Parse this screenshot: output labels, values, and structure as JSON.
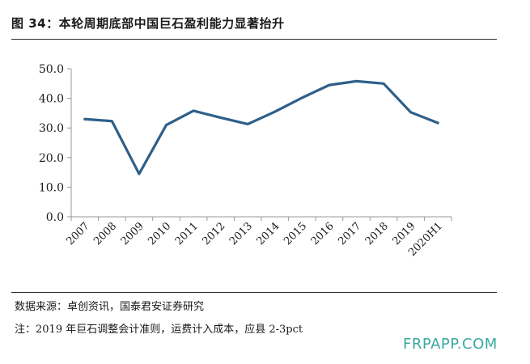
{
  "figure_title": "图 34：本轮周期底部中国巨石盈利能力显著抬升",
  "chart_data": {
    "type": "line",
    "categories": [
      "2007",
      "2008",
      "2009",
      "2010",
      "2011",
      "2012",
      "2013",
      "2014",
      "2015",
      "2016",
      "2017",
      "2018",
      "2019",
      "2020H1"
    ],
    "series": [
      {
        "values": [
          33.0,
          32.3,
          14.5,
          31.0,
          35.8,
          33.5,
          31.3,
          35.5,
          40.2,
          44.5,
          45.8,
          45.0,
          35.3,
          31.7
        ]
      }
    ],
    "ylim": [
      0,
      50
    ],
    "yticks": [
      "0.0",
      "10.0",
      "20.0",
      "30.0",
      "40.0",
      "50.0"
    ],
    "ytick_values": [
      0,
      10,
      20,
      30,
      40,
      50
    ],
    "grid": false,
    "line_color": "#2e5f8a"
  },
  "source_text": "数据来源：卓创资讯，国泰君安证券研究",
  "note_text": "注：2019 年巨石调整会计准则，运费计入成本，应县 2-3pct",
  "watermark": "FRPAPP.COM"
}
